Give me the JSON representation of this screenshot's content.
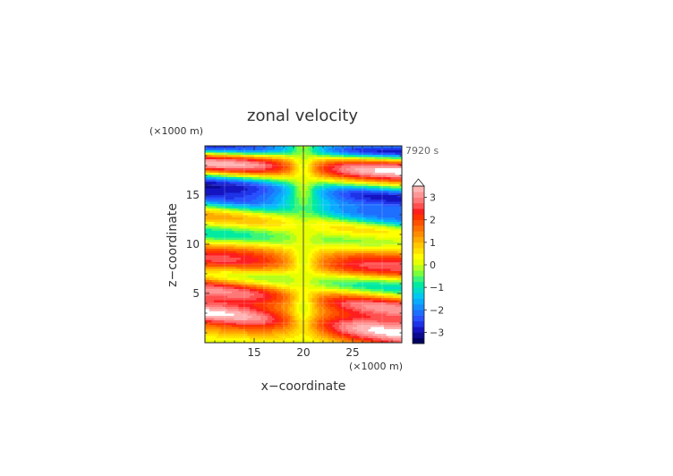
{
  "chart_data": {
    "type": "heatmap",
    "title": "zonal velocity",
    "xlabel": "x−coordinate",
    "ylabel": "z−coordinate",
    "x_unit": "(×1000 m)",
    "y_unit": "(×1000 m)",
    "time_label": "7920 s",
    "xlim": [
      10,
      30
    ],
    "ylim": [
      0,
      20
    ],
    "x_ticks": [
      "15",
      "20",
      "25"
    ],
    "x_tick_values": [
      15,
      20,
      25
    ],
    "y_ticks": [
      "5",
      "10",
      "15"
    ],
    "y_tick_values": [
      5,
      10,
      15
    ],
    "colorbar": {
      "levels": [
        -3.5,
        -3.25,
        -3,
        -2.75,
        -2.5,
        -2.25,
        -2,
        -1.75,
        -1.5,
        -1.25,
        -1,
        -0.75,
        -0.5,
        -0.25,
        0,
        0.25,
        0.5,
        0.75,
        1,
        1.25,
        1.5,
        1.75,
        2,
        2.25,
        2.5,
        2.75,
        3,
        3.25,
        3.5
      ],
      "colors": [
        "#000060",
        "#0a0a90",
        "#1414c0",
        "#1e32e6",
        "#2850ff",
        "#1e6eff",
        "#148cff",
        "#0aaaff",
        "#00c8f0",
        "#00dcc8",
        "#00eba0",
        "#3cf578",
        "#78ff3c",
        "#b4ff1e",
        "#e6ff00",
        "#ffff00",
        "#ffe100",
        "#ffc800",
        "#ffaa00",
        "#ff8c00",
        "#ff6e00",
        "#ff5000",
        "#ff3200",
        "#ff1e1e",
        "#ff5050",
        "#ff7878",
        "#ff9696",
        "#ffb4b4"
      ],
      "tick_labels": [
        "3",
        "2",
        "1",
        "0",
        "−1",
        "−2",
        "−3"
      ],
      "tick_values": [
        3,
        2,
        1,
        0,
        -1,
        -2,
        -3
      ],
      "over_color": "#ffffff"
    },
    "field": {
      "bands": [
        {
          "z": 0.5,
          "w": 0.55,
          "amp": 0.6
        },
        {
          "z": 2.0,
          "w": 0.9,
          "amp": 3.6
        },
        {
          "z": 4.5,
          "w": 0.9,
          "amp": 3.2
        },
        {
          "z": 6.3,
          "w": 0.8,
          "amp": -1.6
        },
        {
          "z": 7.8,
          "w": 0.9,
          "amp": 2.6
        },
        {
          "z": 9.3,
          "w": 0.8,
          "amp": 1.2
        },
        {
          "z": 10.6,
          "w": 0.8,
          "amp": -1.4
        },
        {
          "z": 12.0,
          "w": 0.9,
          "amp": 1.5
        },
        {
          "z": 13.6,
          "w": 0.8,
          "amp": -2.3
        },
        {
          "z": 15.5,
          "w": 0.8,
          "amp": -2.9
        },
        {
          "z": 17.8,
          "w": 0.9,
          "amp": 3.7
        },
        {
          "z": 19.6,
          "w": 0.6,
          "amp": -3.2
        }
      ]
    }
  }
}
